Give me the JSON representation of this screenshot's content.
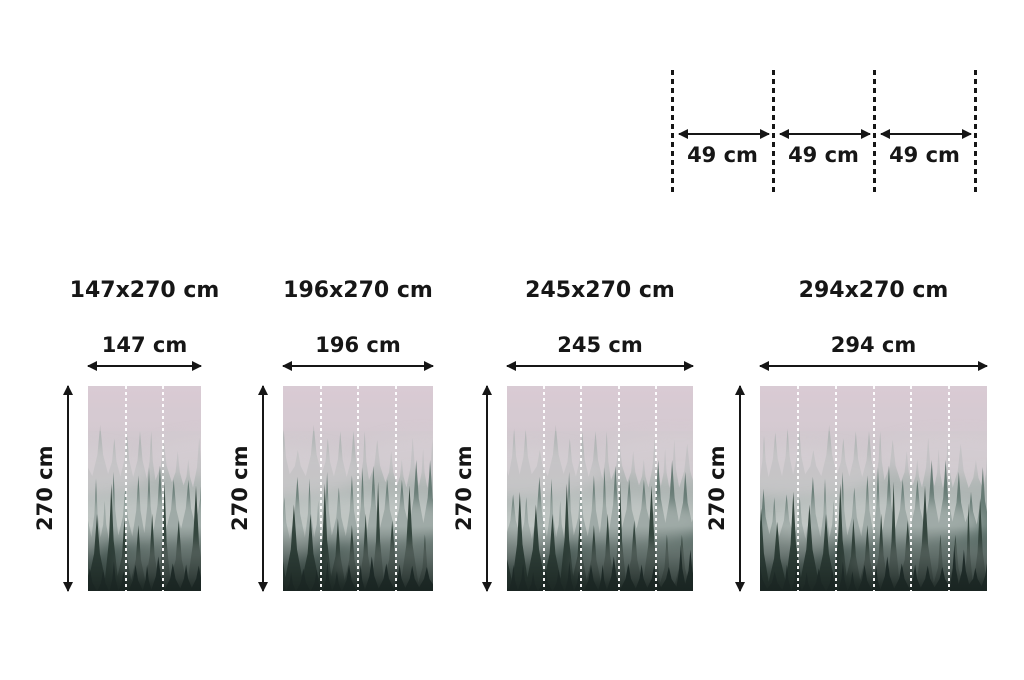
{
  "page": {
    "background": "#ffffff",
    "ink_color": "#161616"
  },
  "panel_diagram": {
    "description": "panel width detail with dashed cut lines",
    "segments": [
      {
        "label": "49 cm"
      },
      {
        "label": "49 cm"
      },
      {
        "label": "49 cm"
      }
    ]
  },
  "sizes": [
    {
      "title": "147x270 cm",
      "width_label": "147 cm",
      "height_label": "270 cm",
      "panels": 3
    },
    {
      "title": "196x270 cm",
      "width_label": "196 cm",
      "height_label": "270 cm",
      "panels": 4
    },
    {
      "title": "245x270 cm",
      "width_label": "245 cm",
      "height_label": "270 cm",
      "panels": 5
    },
    {
      "title": "294x270 cm",
      "width_label": "294 cm",
      "height_label": "270 cm",
      "panels": 6
    }
  ],
  "preview_image": {
    "subject": "foggy coniferous forest on a mountainside",
    "divider_style": "white dashed vertical panel lines",
    "colors": {
      "fog_top": "#d9ccd4",
      "fog_mid": "#c6cac8",
      "trees_far": "#93a49e",
      "trees_mid": "#5d736c",
      "trees_front": "#35473f",
      "trees_dark": "#243330"
    }
  }
}
